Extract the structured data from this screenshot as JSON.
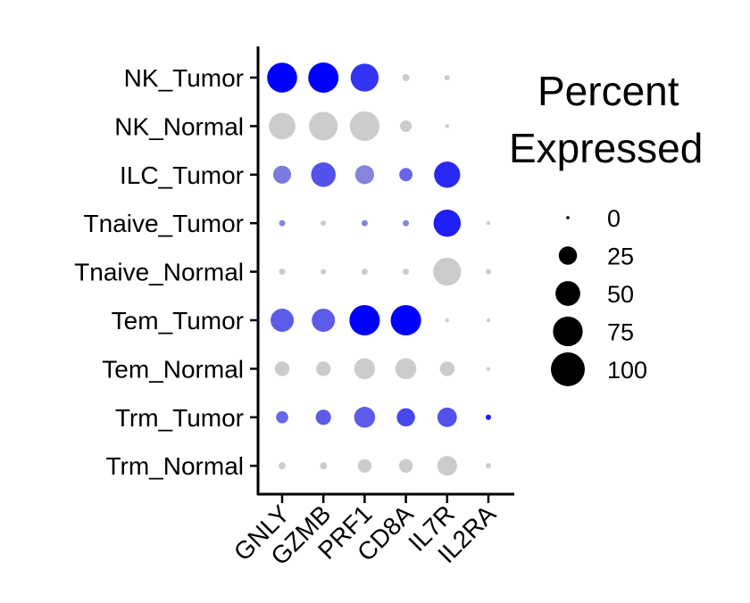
{
  "chart_data": {
    "type": "dotplot",
    "title": "",
    "xlabel": "",
    "ylabel": "",
    "genes": [
      "GNLY",
      "GZMB",
      "PRF1",
      "CD8A",
      "IL7R",
      "IL2RA"
    ],
    "cell_groups": [
      "NK_Tumor",
      "NK_Normal",
      "ILC_Tumor",
      "Tnaive_Tumor",
      "Tnaive_Normal",
      "Tem_Tumor",
      "Tem_Normal",
      "Trm_Tumor",
      "Trm_Normal"
    ],
    "color_scale": {
      "low": "#cccccc",
      "high": "#0000ff"
    },
    "percent_expressed": [
      [
        92,
        94,
        80,
        5,
        3,
        0
      ],
      [
        72,
        84,
        90,
        14,
        1,
        0
      ],
      [
        33,
        62,
        37,
        18,
        70,
        0
      ],
      [
        4,
        3,
        4,
        4,
        76,
        1
      ],
      [
        4,
        3,
        4,
        4,
        80,
        3
      ],
      [
        55,
        55,
        95,
        95,
        1,
        1
      ],
      [
        22,
        22,
        45,
        45,
        22,
        1
      ],
      [
        15,
        24,
        45,
        34,
        39,
        3
      ],
      [
        5,
        5,
        19,
        19,
        40,
        3
      ]
    ],
    "scaled_expression": [
      [
        1.0,
        1.0,
        0.75,
        0.0,
        0.0,
        0.0
      ],
      [
        0.0,
        0.0,
        0.0,
        0.0,
        0.0,
        0.0
      ],
      [
        0.4,
        0.6,
        0.35,
        0.5,
        0.8,
        0.0
      ],
      [
        0.35,
        0.0,
        0.35,
        0.35,
        0.85,
        0.0
      ],
      [
        0.0,
        0.0,
        0.0,
        0.0,
        0.0,
        0.0
      ],
      [
        0.55,
        0.55,
        1.0,
        1.0,
        0.0,
        0.0
      ],
      [
        0.0,
        0.0,
        0.0,
        0.0,
        0.0,
        0.0
      ],
      [
        0.5,
        0.55,
        0.55,
        0.65,
        0.6,
        0.85
      ],
      [
        0.0,
        0.0,
        0.0,
        0.0,
        0.0,
        0.0
      ]
    ],
    "legend": {
      "title_lines": [
        "Percent",
        "Expressed"
      ],
      "sizes": [
        0,
        25,
        50,
        75,
        100
      ],
      "labels": [
        "0",
        "25",
        "50",
        "75",
        "100"
      ],
      "placement": "right"
    }
  }
}
